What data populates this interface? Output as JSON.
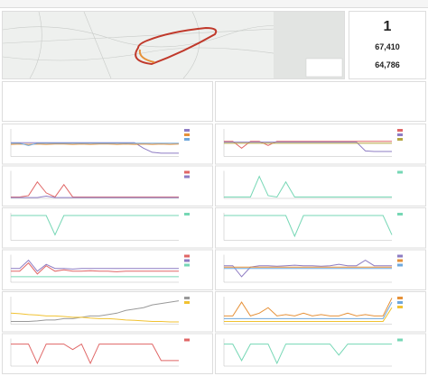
{
  "stats": [
    "1",
    "67,410",
    "64,786"
  ],
  "charts": [
    {
      "type": "line",
      "ylim": [
        0,
        100
      ],
      "series": [
        {
          "color": "#8e7cc3",
          "values": [
            50,
            50,
            50,
            50,
            50,
            50,
            50,
            50,
            50,
            50,
            50,
            50,
            50,
            50,
            50,
            30,
            15,
            12,
            12,
            12
          ]
        },
        {
          "color": "#e69138",
          "values": [
            44,
            45,
            44,
            45,
            44,
            45,
            45,
            44,
            45,
            44,
            45,
            45,
            44,
            45,
            44,
            45,
            44,
            45,
            44,
            45
          ]
        },
        {
          "color": "#6fa8dc",
          "values": [
            48,
            48,
            40,
            48,
            48,
            48,
            48,
            48,
            48,
            48,
            48,
            48,
            48,
            48,
            48,
            48,
            48,
            48,
            48,
            48
          ]
        }
      ]
    },
    {
      "type": "line",
      "ylim": [
        0,
        100
      ],
      "series": [
        {
          "color": "#e06666",
          "values": [
            55,
            55,
            30,
            55,
            55,
            40,
            55,
            55,
            55,
            55,
            55,
            55,
            55,
            55,
            55,
            55,
            55,
            55,
            55,
            55
          ]
        },
        {
          "color": "#8e7cc3",
          "values": [
            52,
            52,
            52,
            52,
            52,
            52,
            52,
            52,
            52,
            52,
            52,
            52,
            52,
            52,
            52,
            52,
            20,
            18,
            18,
            18
          ]
        },
        {
          "color": "#b5a642",
          "values": [
            48,
            48,
            48,
            48,
            48,
            48,
            48,
            48,
            48,
            48,
            48,
            48,
            48,
            48,
            48,
            48,
            48,
            48,
            48,
            48
          ]
        }
      ]
    },
    {
      "type": "line",
      "ylim": [
        0,
        100
      ],
      "series": [
        {
          "color": "#e06666",
          "values": [
            5,
            5,
            10,
            60,
            20,
            5,
            50,
            5,
            5,
            5,
            5,
            5,
            5,
            5,
            5,
            5,
            5,
            5,
            5,
            5
          ]
        },
        {
          "color": "#8e7cc3",
          "values": [
            3,
            3,
            3,
            3,
            8,
            3,
            3,
            3,
            3,
            3,
            3,
            3,
            3,
            3,
            3,
            3,
            3,
            3,
            3,
            3
          ]
        }
      ]
    },
    {
      "type": "line",
      "ylim": [
        0,
        100
      ],
      "series": [
        {
          "color": "#76d7b5",
          "values": [
            5,
            5,
            5,
            5,
            80,
            10,
            5,
            60,
            5,
            5,
            5,
            5,
            5,
            5,
            5,
            5,
            5,
            5,
            5,
            5
          ]
        }
      ]
    },
    {
      "type": "line",
      "ylim": [
        0,
        100
      ],
      "series": [
        {
          "color": "#76d7b5",
          "values": [
            90,
            90,
            90,
            90,
            90,
            20,
            90,
            90,
            90,
            90,
            90,
            90,
            90,
            90,
            90,
            90,
            90,
            90,
            90,
            90
          ]
        }
      ]
    },
    {
      "type": "line",
      "ylim": [
        0,
        100
      ],
      "series": [
        {
          "color": "#76d7b5",
          "values": [
            90,
            90,
            90,
            90,
            90,
            90,
            90,
            90,
            15,
            90,
            90,
            90,
            90,
            90,
            90,
            90,
            90,
            90,
            90,
            20
          ]
        }
      ]
    },
    {
      "type": "line",
      "ylim": [
        0,
        100
      ],
      "series": [
        {
          "color": "#e06666",
          "values": [
            40,
            40,
            70,
            30,
            60,
            40,
            45,
            40,
            40,
            42,
            40,
            40,
            38,
            40,
            40,
            40,
            40,
            40,
            40,
            40
          ]
        },
        {
          "color": "#8e7cc3",
          "values": [
            50,
            50,
            80,
            40,
            65,
            50,
            50,
            48,
            50,
            50,
            50,
            50,
            50,
            50,
            50,
            50,
            50,
            50,
            50,
            50
          ]
        },
        {
          "color": "#76d7b5",
          "values": [
            20,
            20,
            20,
            20,
            20,
            20,
            20,
            20,
            20,
            20,
            20,
            20,
            20,
            20,
            20,
            20,
            20,
            20,
            20,
            20
          ]
        }
      ]
    },
    {
      "type": "line",
      "ylim": [
        0,
        100
      ],
      "series": [
        {
          "color": "#8e7cc3",
          "values": [
            60,
            60,
            20,
            55,
            60,
            60,
            58,
            60,
            62,
            60,
            60,
            58,
            60,
            65,
            60,
            60,
            80,
            60,
            60,
            60
          ]
        },
        {
          "color": "#e69138",
          "values": [
            55,
            55,
            55,
            55,
            55,
            55,
            55,
            55,
            55,
            55,
            55,
            55,
            55,
            55,
            55,
            55,
            55,
            55,
            55,
            55
          ]
        },
        {
          "color": "#6fa8dc",
          "values": [
            50,
            50,
            50,
            50,
            50,
            50,
            50,
            50,
            50,
            50,
            50,
            50,
            50,
            50,
            50,
            50,
            50,
            50,
            50,
            50
          ]
        }
      ]
    },
    {
      "type": "line",
      "ylim": [
        0,
        100
      ],
      "series": [
        {
          "color": "#999999",
          "values": [
            10,
            10,
            10,
            12,
            15,
            15,
            20,
            20,
            25,
            30,
            30,
            35,
            40,
            50,
            55,
            60,
            70,
            75,
            80,
            85
          ]
        },
        {
          "color": "#f1c232",
          "values": [
            40,
            38,
            35,
            33,
            30,
            30,
            28,
            25,
            25,
            22,
            20,
            20,
            18,
            15,
            14,
            12,
            10,
            10,
            8,
            8
          ]
        }
      ]
    },
    {
      "type": "line",
      "ylim": [
        0,
        100
      ],
      "series": [
        {
          "color": "#e69138",
          "values": [
            30,
            30,
            80,
            30,
            40,
            60,
            30,
            35,
            30,
            40,
            30,
            35,
            30,
            30,
            40,
            30,
            35,
            30,
            30,
            95
          ]
        },
        {
          "color": "#6fa8dc",
          "values": [
            20,
            20,
            20,
            20,
            20,
            20,
            20,
            20,
            20,
            20,
            20,
            20,
            20,
            20,
            20,
            20,
            20,
            20,
            20,
            80
          ]
        },
        {
          "color": "#f1c232",
          "values": [
            10,
            10,
            10,
            10,
            10,
            10,
            10,
            10,
            10,
            10,
            10,
            10,
            10,
            10,
            10,
            10,
            10,
            10,
            10,
            60
          ]
        }
      ]
    },
    {
      "type": "line",
      "ylim": [
        0,
        100
      ],
      "series": [
        {
          "color": "#e06666",
          "values": [
            80,
            80,
            80,
            10,
            80,
            80,
            80,
            60,
            80,
            10,
            80,
            80,
            80,
            80,
            80,
            80,
            80,
            20,
            20,
            20
          ]
        }
      ]
    },
    {
      "type": "line",
      "ylim": [
        0,
        100
      ],
      "series": [
        {
          "color": "#76d7b5",
          "values": [
            80,
            80,
            20,
            80,
            80,
            80,
            10,
            80,
            80,
            80,
            80,
            80,
            80,
            40,
            80,
            80,
            80,
            80,
            80,
            80
          ]
        }
      ]
    }
  ]
}
